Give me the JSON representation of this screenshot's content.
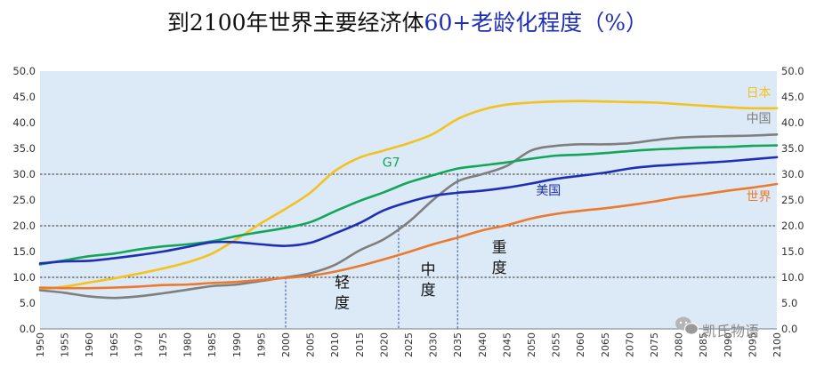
{
  "title": {
    "main": "到2100年世界主要经济体",
    "accent": "60+老龄化程度（%）"
  },
  "colors": {
    "plot_bg": "#dce9f6",
    "japan": "#f3c21f",
    "china": "#7f7f7f",
    "g7": "#12a65a",
    "usa": "#1f2fb5",
    "world": "#ec7a2e"
  },
  "chart_data": {
    "type": "line",
    "x": [
      1950,
      1955,
      1960,
      1965,
      1970,
      1975,
      1980,
      1985,
      1990,
      1995,
      2000,
      2005,
      2010,
      2015,
      2020,
      2025,
      2030,
      2035,
      2040,
      2045,
      2050,
      2055,
      2060,
      2065,
      2070,
      2075,
      2080,
      2085,
      2090,
      2095,
      2100
    ],
    "xtick_labels": [
      "1950",
      "1955",
      "1960",
      "1965",
      "1970",
      "1975",
      "1980",
      "1985",
      "1990",
      "1995",
      "2000",
      "2005",
      "2010",
      "2015",
      "2020",
      "2025",
      "2030",
      "2035",
      "2040",
      "2045",
      "2050",
      "2055",
      "2060",
      "2065",
      "2070",
      "2075",
      "2080",
      "2085",
      "2090",
      "2095",
      "2100"
    ],
    "ylim": [
      0,
      50
    ],
    "yticks": [
      "0.0",
      "5.0",
      "10.0",
      "15.0",
      "20.0",
      "25.0",
      "30.0",
      "35.0",
      "40.0",
      "45.0",
      "50.0"
    ],
    "y_axis_sides": "both",
    "series": [
      {
        "name": "日本",
        "key": "japan",
        "values": [
          7.7,
          8.2,
          9.0,
          9.8,
          10.7,
          11.7,
          12.9,
          14.6,
          17.4,
          20.5,
          23.3,
          26.4,
          30.6,
          33.2,
          34.6,
          36.0,
          37.8,
          40.7,
          42.5,
          43.5,
          43.9,
          44.1,
          44.2,
          44.1,
          44.0,
          43.9,
          43.6,
          43.3,
          43.0,
          42.8,
          42.8
        ]
      },
      {
        "name": "中国",
        "key": "china",
        "values": [
          7.5,
          7.0,
          6.3,
          6.0,
          6.3,
          6.9,
          7.6,
          8.3,
          8.6,
          9.3,
          10.0,
          10.8,
          12.4,
          15.2,
          17.4,
          20.7,
          25.0,
          28.6,
          30.0,
          31.6,
          34.6,
          35.5,
          35.8,
          35.8,
          36.0,
          36.6,
          37.1,
          37.3,
          37.4,
          37.5,
          37.7
        ]
      },
      {
        "name": "G7",
        "key": "g7",
        "values": [
          12.5,
          13.3,
          14.1,
          14.6,
          15.4,
          16.0,
          16.4,
          17.0,
          18.0,
          18.8,
          19.6,
          20.7,
          22.8,
          24.8,
          26.5,
          28.4,
          29.8,
          31.1,
          31.7,
          32.3,
          33.0,
          33.6,
          33.8,
          34.1,
          34.5,
          34.8,
          35.0,
          35.2,
          35.3,
          35.5,
          35.6
        ]
      },
      {
        "name": "美国",
        "key": "usa",
        "values": [
          12.7,
          13.1,
          13.2,
          13.7,
          14.3,
          15.0,
          15.9,
          16.8,
          16.8,
          16.4,
          16.1,
          16.7,
          18.5,
          20.5,
          23.0,
          24.6,
          25.8,
          26.4,
          26.8,
          27.4,
          28.2,
          29.1,
          29.7,
          30.3,
          31.1,
          31.6,
          31.9,
          32.2,
          32.5,
          32.9,
          33.3
        ]
      },
      {
        "name": "世界",
        "key": "world",
        "values": [
          8.0,
          7.9,
          7.9,
          8.0,
          8.2,
          8.5,
          8.6,
          8.9,
          9.1,
          9.5,
          9.9,
          10.3,
          11.1,
          12.2,
          13.5,
          14.9,
          16.4,
          17.7,
          19.1,
          20.1,
          21.4,
          22.3,
          22.9,
          23.4,
          24.0,
          24.7,
          25.5,
          26.1,
          26.8,
          27.4,
          28.1
        ]
      }
    ],
    "reference_lines": [
      {
        "y": 10,
        "style": "dashed"
      },
      {
        "y": 20,
        "style": "dashed"
      },
      {
        "y": 30,
        "style": "dashed"
      }
    ],
    "vertical_markers": [
      {
        "x": 2000,
        "y_top": 10
      },
      {
        "x": 2023,
        "y_top": 20
      },
      {
        "x": 2035,
        "y_top": 30
      }
    ],
    "zones": [
      {
        "label": "轻度",
        "chars": [
          "轻",
          "度"
        ],
        "x": 2011.5,
        "y_top": 8.0
      },
      {
        "label": "中度",
        "chars": [
          "中",
          "度"
        ],
        "x": 2029.0,
        "y_top": 10.5
      },
      {
        "label": "重度",
        "chars": [
          "重",
          "度"
        ],
        "x": 2043.5,
        "y_top": 14.8
      }
    ],
    "series_labels": [
      {
        "text": "日本",
        "key": "japan",
        "x": 2096.3,
        "y": 45.0
      },
      {
        "text": "中国",
        "key": "china",
        "x": 2096.3,
        "y": 40.0
      },
      {
        "text": "G7",
        "key": "g7",
        "x": 2021.5,
        "y": 31.5
      },
      {
        "text": "美国",
        "key": "usa",
        "x": 2053.5,
        "y": 26.0
      },
      {
        "text": "世界",
        "key": "world",
        "x": 2096.3,
        "y": 24.8
      }
    ]
  },
  "watermark": {
    "icon": "wechat-icon",
    "text": "凯氏物语"
  }
}
